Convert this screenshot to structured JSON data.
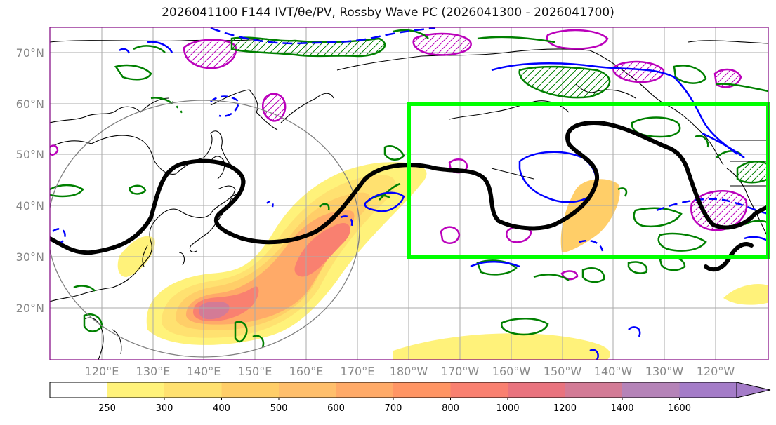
{
  "title": "2026041100 F144 IVT/θe/PV, Rossby Wave PC (2026041300 - 2026041700)",
  "map": {
    "lat_labels": [
      "70°N",
      "60°N",
      "50°N",
      "40°N",
      "30°N",
      "20°N"
    ],
    "lat_values": [
      70,
      60,
      50,
      40,
      30,
      20
    ],
    "lon_labels": [
      "120°E",
      "130°E",
      "140°E",
      "150°E",
      "160°E",
      "170°E",
      "180°W",
      "170°W",
      "160°W",
      "150°W",
      "140°W",
      "130°W",
      "120°W"
    ],
    "box_region": {
      "lon_west": 180,
      "lon_east": 250,
      "lat_south": 30,
      "lat_north": 60
    },
    "colors": {
      "box": "#00ff00",
      "coast": "#000000",
      "wave": "#000000",
      "theta_e": "#0000ff",
      "pv_green": "#008000",
      "pv_magenta": "#bb00bb",
      "grid": "#aaaaaa"
    }
  },
  "colorbar": {
    "ticks": [
      "250",
      "300",
      "400",
      "500",
      "600",
      "700",
      "800",
      "1000",
      "1200",
      "1400",
      "1600"
    ],
    "colors": [
      "#ffffff",
      "#fff27a",
      "#ffe170",
      "#ffce68",
      "#ffbf6c",
      "#ffaa68",
      "#ff9564",
      "#f98070",
      "#e9737e",
      "#d37b96",
      "#b583b8",
      "#a47cc8"
    ]
  }
}
